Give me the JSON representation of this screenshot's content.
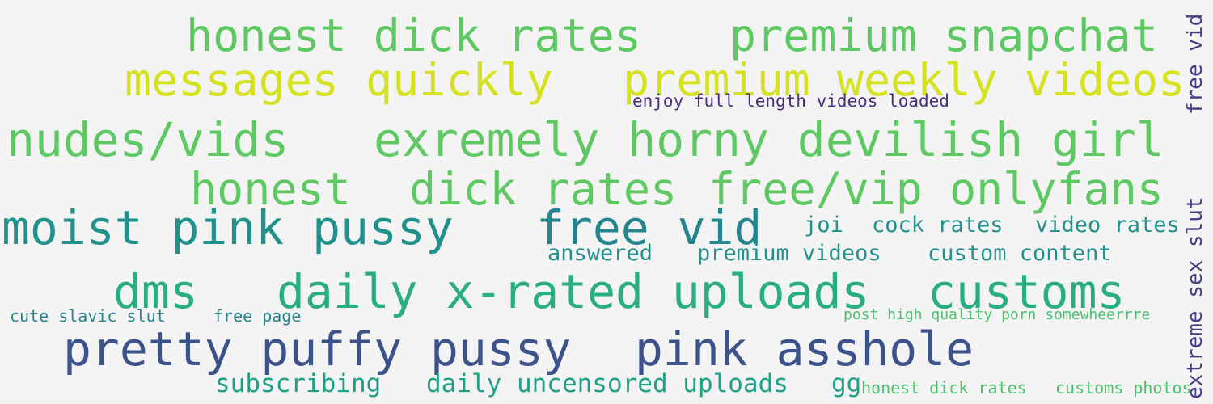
{
  "words": [
    "honest dick rates",
    "premium snapchat",
    "messages quickly",
    "premium weekly videos",
    "enjoy full length videos loaded",
    "nudes/vids",
    "exremely horny devilish girl",
    "honest",
    "dick rates",
    "free/vip onlyfans",
    "moist pink pussy",
    "free vid",
    "joi",
    "cock rates",
    "video rates",
    "answered",
    "premium videos",
    "custom content",
    "dms",
    "daily x-rated uploads",
    "customs",
    "cute slavic slut",
    "free page",
    "post high quality porn somewheerrre",
    "pretty puffy pussy",
    "pink asshole",
    "subscribing",
    "daily uncensored uploads",
    "gg",
    "honest dick rates",
    "customs photos",
    "free vid",
    "extreme sex slut"
  ],
  "colors": {
    "background": "#f4f4f4",
    "yellow": "#d6e21f",
    "green": "#5ec962",
    "teal": "#21918c",
    "sea_green": "#28ae80",
    "navy": "#3b528b",
    "purple": "#472f7d"
  }
}
